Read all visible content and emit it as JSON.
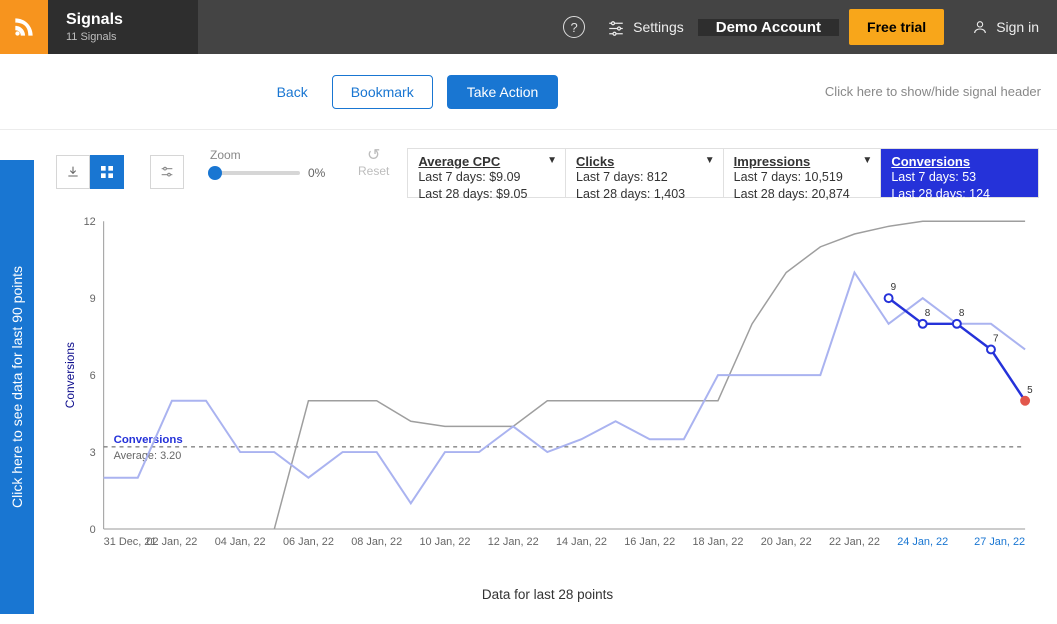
{
  "header": {
    "title": "Signals",
    "subtitle": "11 Signals",
    "help_glyph": "?",
    "settings_label": "Settings",
    "account_label": "Demo Account",
    "trial_label": "Free trial",
    "signin_label": "Sign in"
  },
  "toolbar": {
    "back_label": "Back",
    "bookmark_label": "Bookmark",
    "action_label": "Take Action",
    "hint": "Click here to show/hide signal header"
  },
  "side_strip": "Click here to see data for last 90 points",
  "controls": {
    "zoom_label": "Zoom",
    "zoom_pct": "0%",
    "reset_label": "Reset",
    "reset_glyph": "↺"
  },
  "metrics": [
    {
      "key": "avg_cpc",
      "title": "Average CPC",
      "line1": "Last 7 days: $9.09",
      "line2": "Last 28 days: $9.05",
      "active": false
    },
    {
      "key": "clicks",
      "title": "Clicks",
      "line1": "Last 7 days: 812",
      "line2": "Last 28 days: 1,403",
      "active": false
    },
    {
      "key": "impressions",
      "title": "Impressions",
      "line1": "Last 7 days: 10,519",
      "line2": "Last 28 days: 20,874",
      "active": false
    },
    {
      "key": "conversions",
      "title": "Conversions",
      "line1": "Last 7 days: 53",
      "line2": "Last 28 days: 124",
      "active": true
    }
  ],
  "chart": {
    "type": "line",
    "y_label": "Conversions",
    "ylim": [
      0,
      12
    ],
    "ytick_step": 3,
    "x_labels": [
      "31 Dec, 21",
      "02 Jan, 22",
      "04 Jan, 22",
      "06 Jan, 22",
      "08 Jan, 22",
      "10 Jan, 22",
      "12 Jan, 22",
      "14 Jan, 22",
      "16 Jan, 22",
      "18 Jan, 22",
      "20 Jan, 22",
      "22 Jan, 22",
      "24 Jan, 22",
      "27 Jan, 22"
    ],
    "x_blue_indices": [
      12,
      13
    ],
    "annotation": {
      "title": "Conversions",
      "sub": "Average: 3.20",
      "y": 3.2
    },
    "prev_series": {
      "color": "#aab3f0",
      "values": [
        2,
        2,
        5,
        5,
        3,
        3,
        2,
        3,
        3,
        1,
        3,
        3,
        4,
        3,
        3.5,
        4.2,
        3.5,
        3.5,
        6,
        6,
        6,
        6,
        10,
        8,
        9,
        8,
        8,
        7
      ]
    },
    "gray_series": {
      "color": "#9e9e9e",
      "values": [
        null,
        null,
        null,
        null,
        null,
        0,
        5,
        5,
        5,
        4.2,
        4,
        4,
        4,
        5,
        5,
        5,
        5,
        5,
        5,
        8,
        10,
        11,
        11.5,
        11.8,
        12,
        12,
        12,
        12
      ]
    },
    "current_series": {
      "color": "#2532d9",
      "start_index": 23,
      "values": [
        9,
        8,
        8,
        7,
        5
      ],
      "point_labels": [
        "9",
        "8",
        "8",
        "7",
        "5"
      ],
      "last_point_color": "#e2574c"
    },
    "caption": "Data for last 28 points",
    "background_color": "#ffffff"
  }
}
